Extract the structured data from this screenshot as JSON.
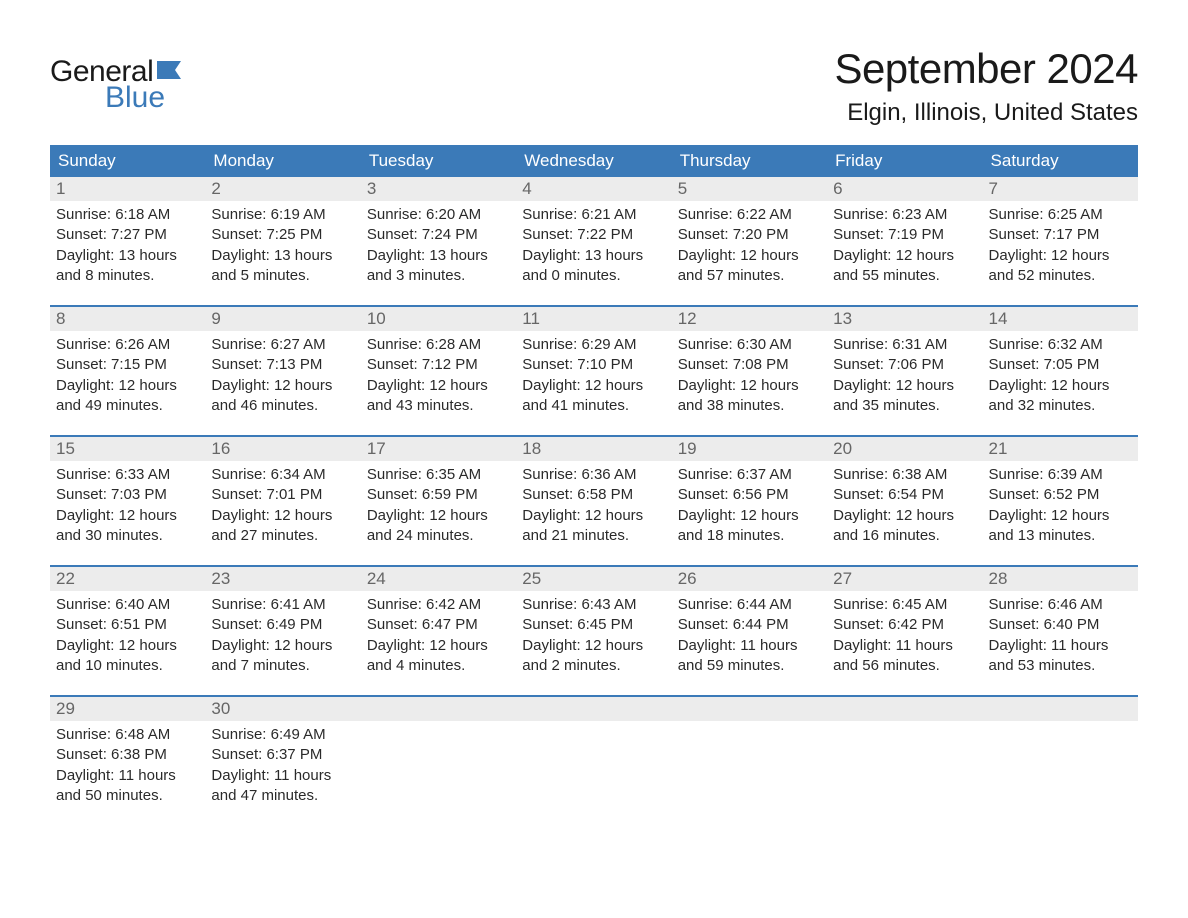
{
  "logo": {
    "general": "General",
    "blue": "Blue"
  },
  "title": "September 2024",
  "location": "Elgin, Illinois, United States",
  "style": {
    "header_bg": "#3b7ab8",
    "header_text": "#ffffff",
    "daynum_bg": "#ececec",
    "daynum_text": "#666666",
    "body_text": "#2a2a2a",
    "week_border": "#3b7ab8",
    "logo_blue": "#3b7ab8",
    "title_fontsize": 42,
    "location_fontsize": 24,
    "weekday_fontsize": 17,
    "body_fontsize": 15
  },
  "weekdays": [
    "Sunday",
    "Monday",
    "Tuesday",
    "Wednesday",
    "Thursday",
    "Friday",
    "Saturday"
  ],
  "weeks": [
    [
      {
        "n": "1",
        "sr": "6:18 AM",
        "ss": "7:27 PM",
        "dl": "13 hours and 8 minutes."
      },
      {
        "n": "2",
        "sr": "6:19 AM",
        "ss": "7:25 PM",
        "dl": "13 hours and 5 minutes."
      },
      {
        "n": "3",
        "sr": "6:20 AM",
        "ss": "7:24 PM",
        "dl": "13 hours and 3 minutes."
      },
      {
        "n": "4",
        "sr": "6:21 AM",
        "ss": "7:22 PM",
        "dl": "13 hours and 0 minutes."
      },
      {
        "n": "5",
        "sr": "6:22 AM",
        "ss": "7:20 PM",
        "dl": "12 hours and 57 minutes."
      },
      {
        "n": "6",
        "sr": "6:23 AM",
        "ss": "7:19 PM",
        "dl": "12 hours and 55 minutes."
      },
      {
        "n": "7",
        "sr": "6:25 AM",
        "ss": "7:17 PM",
        "dl": "12 hours and 52 minutes."
      }
    ],
    [
      {
        "n": "8",
        "sr": "6:26 AM",
        "ss": "7:15 PM",
        "dl": "12 hours and 49 minutes."
      },
      {
        "n": "9",
        "sr": "6:27 AM",
        "ss": "7:13 PM",
        "dl": "12 hours and 46 minutes."
      },
      {
        "n": "10",
        "sr": "6:28 AM",
        "ss": "7:12 PM",
        "dl": "12 hours and 43 minutes."
      },
      {
        "n": "11",
        "sr": "6:29 AM",
        "ss": "7:10 PM",
        "dl": "12 hours and 41 minutes."
      },
      {
        "n": "12",
        "sr": "6:30 AM",
        "ss": "7:08 PM",
        "dl": "12 hours and 38 minutes."
      },
      {
        "n": "13",
        "sr": "6:31 AM",
        "ss": "7:06 PM",
        "dl": "12 hours and 35 minutes."
      },
      {
        "n": "14",
        "sr": "6:32 AM",
        "ss": "7:05 PM",
        "dl": "12 hours and 32 minutes."
      }
    ],
    [
      {
        "n": "15",
        "sr": "6:33 AM",
        "ss": "7:03 PM",
        "dl": "12 hours and 30 minutes."
      },
      {
        "n": "16",
        "sr": "6:34 AM",
        "ss": "7:01 PM",
        "dl": "12 hours and 27 minutes."
      },
      {
        "n": "17",
        "sr": "6:35 AM",
        "ss": "6:59 PM",
        "dl": "12 hours and 24 minutes."
      },
      {
        "n": "18",
        "sr": "6:36 AM",
        "ss": "6:58 PM",
        "dl": "12 hours and 21 minutes."
      },
      {
        "n": "19",
        "sr": "6:37 AM",
        "ss": "6:56 PM",
        "dl": "12 hours and 18 minutes."
      },
      {
        "n": "20",
        "sr": "6:38 AM",
        "ss": "6:54 PM",
        "dl": "12 hours and 16 minutes."
      },
      {
        "n": "21",
        "sr": "6:39 AM",
        "ss": "6:52 PM",
        "dl": "12 hours and 13 minutes."
      }
    ],
    [
      {
        "n": "22",
        "sr": "6:40 AM",
        "ss": "6:51 PM",
        "dl": "12 hours and 10 minutes."
      },
      {
        "n": "23",
        "sr": "6:41 AM",
        "ss": "6:49 PM",
        "dl": "12 hours and 7 minutes."
      },
      {
        "n": "24",
        "sr": "6:42 AM",
        "ss": "6:47 PM",
        "dl": "12 hours and 4 minutes."
      },
      {
        "n": "25",
        "sr": "6:43 AM",
        "ss": "6:45 PM",
        "dl": "12 hours and 2 minutes."
      },
      {
        "n": "26",
        "sr": "6:44 AM",
        "ss": "6:44 PM",
        "dl": "11 hours and 59 minutes."
      },
      {
        "n": "27",
        "sr": "6:45 AM",
        "ss": "6:42 PM",
        "dl": "11 hours and 56 minutes."
      },
      {
        "n": "28",
        "sr": "6:46 AM",
        "ss": "6:40 PM",
        "dl": "11 hours and 53 minutes."
      }
    ],
    [
      {
        "n": "29",
        "sr": "6:48 AM",
        "ss": "6:38 PM",
        "dl": "11 hours and 50 minutes."
      },
      {
        "n": "30",
        "sr": "6:49 AM",
        "ss": "6:37 PM",
        "dl": "11 hours and 47 minutes."
      },
      {
        "n": "",
        "empty": true
      },
      {
        "n": "",
        "empty": true
      },
      {
        "n": "",
        "empty": true
      },
      {
        "n": "",
        "empty": true
      },
      {
        "n": "",
        "empty": true
      }
    ]
  ],
  "labels": {
    "sunrise": "Sunrise:",
    "sunset": "Sunset:",
    "daylight": "Daylight:"
  }
}
